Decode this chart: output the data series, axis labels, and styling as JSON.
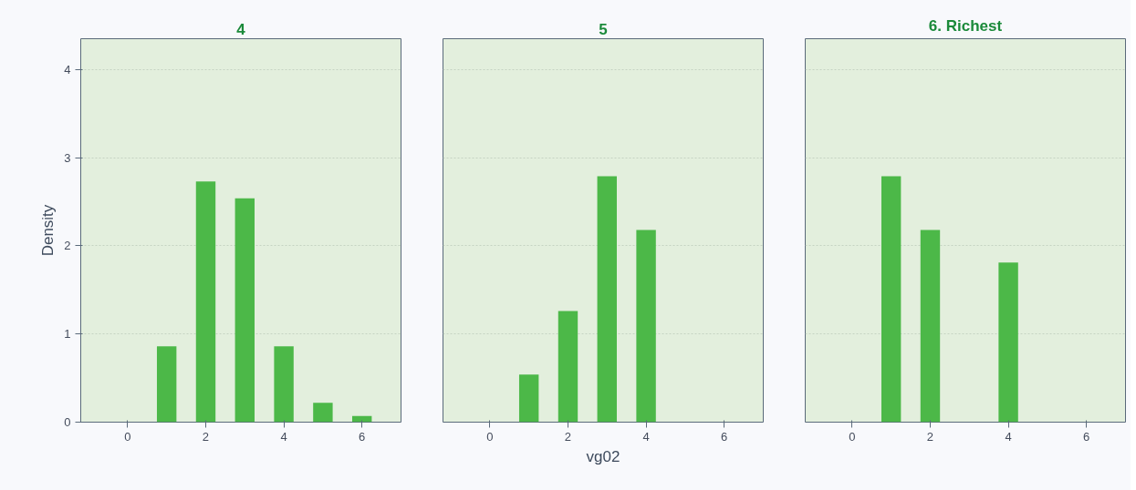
{
  "chart_data": [
    {
      "type": "bar",
      "title": "4",
      "ylabel": "Density",
      "x": [
        1,
        2,
        3,
        4,
        5,
        6
      ],
      "values": [
        0.86,
        2.73,
        2.54,
        0.86,
        0.22,
        0.07
      ],
      "color": "#4cb848",
      "xlim": [
        -1.2,
        7
      ],
      "xticks": [
        0,
        2,
        4,
        6
      ],
      "ylim": [
        0,
        4.35
      ],
      "yticks": [
        0,
        1,
        2,
        3,
        4
      ],
      "grid": "y"
    },
    {
      "type": "bar",
      "title": "5",
      "xlabel": "vg02",
      "x": [
        1,
        2,
        3,
        4
      ],
      "values": [
        0.54,
        1.26,
        2.79,
        2.18
      ],
      "color": "#4cb848",
      "xlim": [
        -1.2,
        7
      ],
      "xticks": [
        0,
        2,
        4,
        6
      ],
      "ylim": [
        0,
        4.35
      ],
      "yticks": [
        0,
        1,
        2,
        3,
        4
      ],
      "grid": "y",
      "tick_labels": "x"
    },
    {
      "type": "bar",
      "title": "6. Richest",
      "x": [
        1,
        2,
        4
      ],
      "values": [
        2.79,
        2.18,
        1.81
      ],
      "color": "#4cb848",
      "xlim": [
        -1.2,
        7
      ],
      "xticks": [
        0,
        2,
        4,
        6
      ],
      "ylim": [
        0,
        4.35
      ],
      "yticks": [
        0,
        1,
        2,
        3,
        4
      ],
      "grid": "y",
      "tick_labels": "x"
    }
  ]
}
